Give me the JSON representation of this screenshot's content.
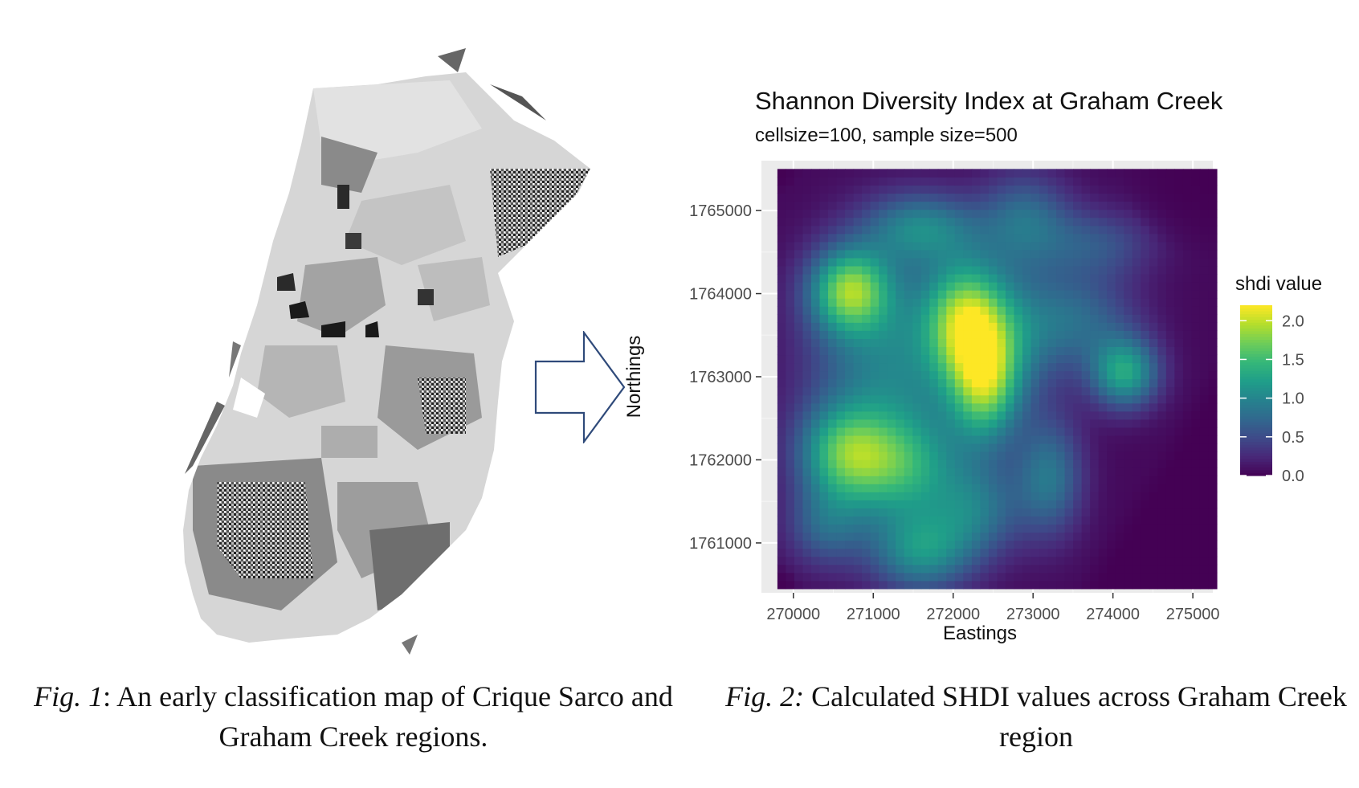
{
  "figure1": {
    "caption_label": "Fig. 1",
    "caption_text": ": An early classification map of Crique Sarco and Graham Creek regions.",
    "classes_gray": [
      "#d6d6d6",
      "#c2c2c2",
      "#a3a3a3",
      "#7d7d7d",
      "#555555",
      "#1e1e1e",
      "#ffffff"
    ]
  },
  "arrow": {
    "icon": "right-arrow-outline-icon",
    "color": "#2f4a7a"
  },
  "figure2": {
    "caption_label": "Fig. 2:",
    "caption_text": " Calculated SHDI values across Graham Creek region"
  },
  "chart_data": {
    "type": "heatmap",
    "title": "Shannon Diversity Index at Graham Creek",
    "subtitle": "cellsize=100, sample size=500",
    "xlabel": "Eastings",
    "ylabel": "Northings",
    "xlim": [
      269600,
      275250
    ],
    "ylim": [
      1760400,
      1765600
    ],
    "x_range_data": [
      269800,
      275300
    ],
    "y_range_data": [
      1760450,
      1765500
    ],
    "x_ticks": [
      270000,
      271000,
      272000,
      273000,
      274000,
      275000
    ],
    "x_tick_labels": [
      "270000",
      "271000",
      "272000",
      "273000",
      "274000",
      "275000"
    ],
    "y_ticks": [
      1761000,
      1762000,
      1763000,
      1764000,
      1765000
    ],
    "y_tick_labels": [
      "1761000",
      "1762000",
      "1763000",
      "1764000",
      "1765000"
    ],
    "grid": true,
    "panel_background": "#ebebeb",
    "legend": {
      "title": "shdi value",
      "position": "right",
      "ticks": [
        0.0,
        0.5,
        1.0,
        1.5,
        2.0
      ],
      "tick_labels": [
        "0.0",
        "0.5",
        "1.0",
        "1.5",
        "2.0"
      ],
      "min": 0.0,
      "max": 2.2
    },
    "colormap": "viridis",
    "grid_resolution": [
      52,
      52
    ],
    "surface": {
      "base": 0.05,
      "blobs": [
        {
          "x": 270700,
          "y": 1764050,
          "value": 1.45,
          "sx": 350,
          "sy": 350
        },
        {
          "x": 271200,
          "y": 1763200,
          "value": 0.9,
          "sx": 700,
          "sy": 900
        },
        {
          "x": 272150,
          "y": 1763700,
          "value": 1.35,
          "sx": 350,
          "sy": 500
        },
        {
          "x": 272400,
          "y": 1762900,
          "value": 1.3,
          "sx": 300,
          "sy": 500
        },
        {
          "x": 271600,
          "y": 1764800,
          "value": 0.85,
          "sx": 500,
          "sy": 300
        },
        {
          "x": 272900,
          "y": 1764900,
          "value": 0.7,
          "sx": 400,
          "sy": 400
        },
        {
          "x": 270600,
          "y": 1762100,
          "value": 1.0,
          "sx": 400,
          "sy": 400
        },
        {
          "x": 271300,
          "y": 1761900,
          "value": 1.1,
          "sx": 550,
          "sy": 450
        },
        {
          "x": 271600,
          "y": 1760900,
          "value": 1.0,
          "sx": 450,
          "sy": 350
        },
        {
          "x": 270400,
          "y": 1761200,
          "value": 0.6,
          "sx": 350,
          "sy": 350
        },
        {
          "x": 272300,
          "y": 1761400,
          "value": 0.7,
          "sx": 400,
          "sy": 400
        },
        {
          "x": 273200,
          "y": 1761800,
          "value": 0.8,
          "sx": 300,
          "sy": 500
        },
        {
          "x": 274150,
          "y": 1763050,
          "value": 1.2,
          "sx": 300,
          "sy": 300
        },
        {
          "x": 273600,
          "y": 1763700,
          "value": 0.6,
          "sx": 500,
          "sy": 400
        },
        {
          "x": 273800,
          "y": 1764600,
          "value": 0.5,
          "sx": 500,
          "sy": 300
        },
        {
          "x": 272700,
          "y": 1763500,
          "value": 0.7,
          "sx": 500,
          "sy": 600
        }
      ],
      "zero_corners": [
        {
          "x": 275200,
          "y": 1765500,
          "r": 1100
        },
        {
          "x": 269800,
          "y": 1765500,
          "r": 300
        },
        {
          "x": 269800,
          "y": 1760450,
          "r": 300
        }
      ],
      "zero_halfplane": {
        "ax": 275300,
        "ay": 1763300,
        "bx": 273500,
        "by": 1760450
      }
    }
  }
}
